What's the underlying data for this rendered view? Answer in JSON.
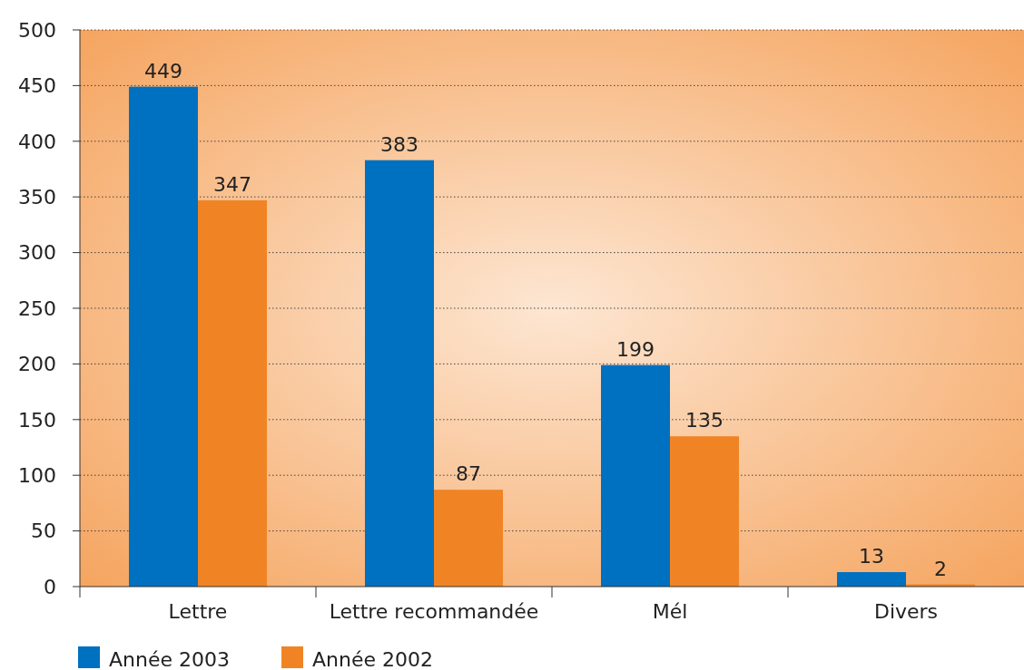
{
  "chart_data": {
    "type": "bar",
    "categories": [
      "Lettre",
      "Lettre recommandée",
      "Mél",
      "Divers"
    ],
    "series": [
      {
        "name": "Année 2003",
        "color": "#0070c0",
        "values": [
          449,
          383,
          199,
          13
        ]
      },
      {
        "name": "Année 2002",
        "color": "#f08424",
        "values": [
          347,
          87,
          135,
          2
        ]
      }
    ],
    "ylim": [
      0,
      500
    ],
    "yticks": [
      0,
      50,
      100,
      150,
      200,
      250,
      300,
      350,
      400,
      450,
      500
    ],
    "grid": "y",
    "legend": "bottom left",
    "data_labels": true
  }
}
